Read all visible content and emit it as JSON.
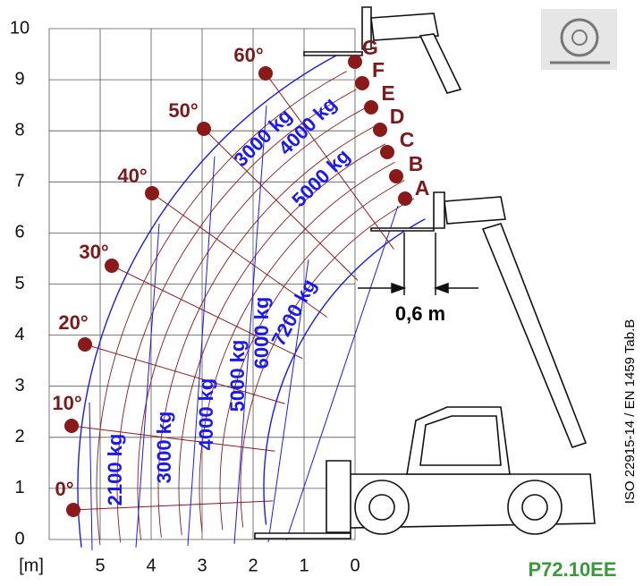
{
  "y_axis": {
    "labels": [
      "0",
      "1",
      "2",
      "3",
      "4",
      "5",
      "6",
      "7",
      "8",
      "9",
      "10"
    ]
  },
  "x_axis": {
    "unit": "[m]",
    "labels": [
      "5",
      "4",
      "3",
      "2",
      "1",
      "0"
    ]
  },
  "angles": [
    "0°",
    "10°",
    "20°",
    "30°",
    "40°",
    "50°",
    "60°"
  ],
  "positions": [
    "A",
    "B",
    "C",
    "D",
    "E",
    "F",
    "G"
  ],
  "loads": [
    "2100 kg",
    "3000 kg",
    "4000 kg",
    "5000 kg",
    "6000 kg",
    "7200 kg",
    "5000 kg",
    "4000 kg",
    "3000 kg"
  ],
  "dimension": "0,6 m",
  "standard": "ISO 22915-14 / EN 1459 Tab.B",
  "model": "P72.10EE"
}
